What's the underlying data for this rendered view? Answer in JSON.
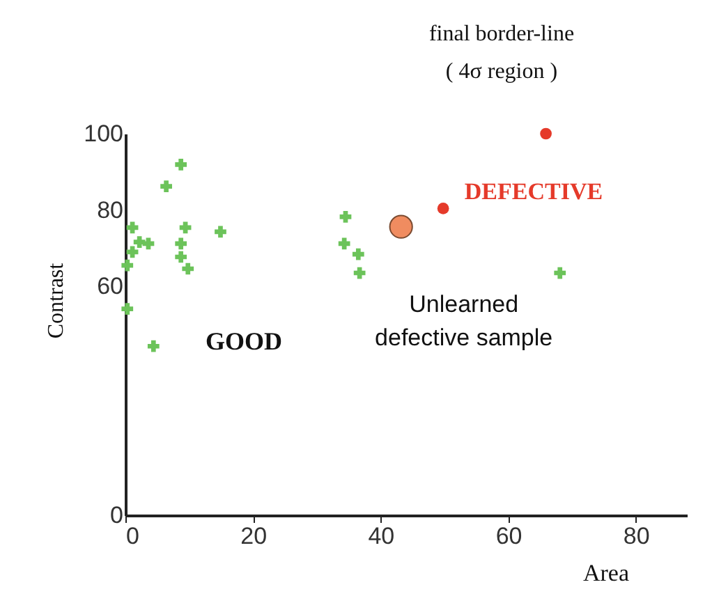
{
  "chart_data": {
    "type": "scatter",
    "xlabel": "Area",
    "ylabel": "Contrast",
    "xlim": [
      0,
      88
    ],
    "ylim": [
      0,
      100
    ],
    "xticks": [
      0,
      20,
      40,
      60,
      80
    ],
    "yticks": [
      0,
      60,
      80,
      100
    ],
    "grid": false,
    "series": [
      {
        "color": "#6cc35a",
        "marker": "cross",
        "x": [
          8.7,
          6.4,
          1.1,
          9.4,
          14.9,
          2.2,
          3.6,
          8.7,
          1.1,
          8.7,
          9.8,
          0.3,
          0.3,
          4.4,
          34.5,
          34.3,
          36.5,
          36.7,
          68.1
        ],
        "values": [
          91.9,
          86.2,
          75.4,
          75.4,
          74.3,
          71.6,
          71.2,
          71.2,
          69,
          67.7,
          64.6,
          65.5,
          54.1,
          44.3,
          78.2,
          71.2,
          68.4,
          63.5,
          63.5
        ]
      },
      {
        "color": "#e53a2a",
        "marker": "circle",
        "x": [
          65.9,
          49.8
        ],
        "values": [
          100,
          80.4
        ]
      },
      {
        "color": "#f08c60",
        "marker": "circle",
        "x": [
          43.2
        ],
        "values": [
          75.6
        ]
      }
    ],
    "annotations": [
      "final border-line",
      "( 4σ region )",
      "GOOD",
      "DEFECTIVE",
      {
        "text": "Unlearned defective sample",
        "x": 43.2,
        "y": 75.6
      }
    ]
  }
}
